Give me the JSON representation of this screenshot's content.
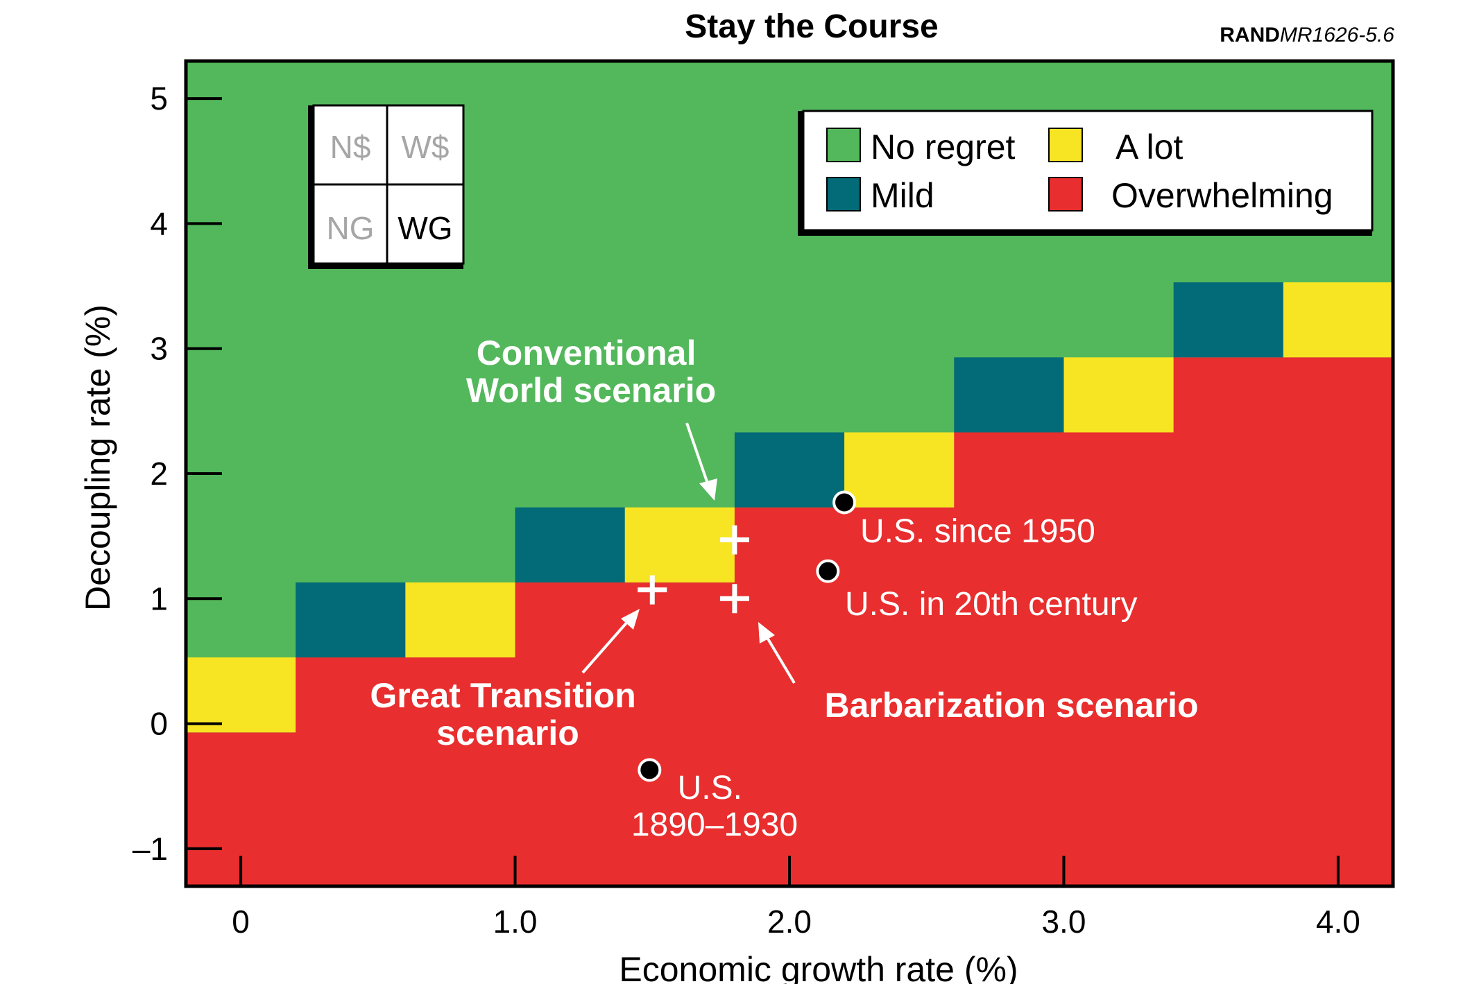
{
  "chart_data": {
    "type": "heatmap",
    "title": "Stay the Course",
    "credit": {
      "org": "RAND",
      "code": "MR1626-5.6"
    },
    "xlabel": "Economic growth rate (%)",
    "ylabel": "Decoupling rate (%)",
    "xlim": [
      -0.2,
      4.2
    ],
    "ylim": [
      -1.3,
      5.3
    ],
    "xticks": [
      {
        "value": 0,
        "label": "0"
      },
      {
        "value": 1.0,
        "label": "1.0"
      },
      {
        "value": 2.0,
        "label": "2.0"
      },
      {
        "value": 3.0,
        "label": "3.0"
      },
      {
        "value": 4.0,
        "label": "4.0"
      }
    ],
    "yticks": [
      {
        "value": -1,
        "label": "–1"
      },
      {
        "value": 0,
        "label": "0"
      },
      {
        "value": 1,
        "label": "1"
      },
      {
        "value": 2,
        "label": "2"
      },
      {
        "value": 3,
        "label": "3"
      },
      {
        "value": 4,
        "label": "4"
      },
      {
        "value": 5,
        "label": "5"
      }
    ],
    "regret_colors": {
      "no_regret": "#53b85b",
      "mild": "#036a78",
      "a_lot": "#f7e523",
      "overwhelming": "#e82e2e"
    },
    "legend": {
      "placement": "top-right",
      "items": [
        {
          "key": "no_regret",
          "label": "No regret"
        },
        {
          "key": "a_lot",
          "label": "A lot"
        },
        {
          "key": "mild",
          "label": "Mild"
        },
        {
          "key": "overwhelming",
          "label": "Overwhelming"
        }
      ]
    },
    "regret_columns": [
      {
        "x0": -0.2,
        "x1": 0.2,
        "mild_bottom": null,
        "ylot_bottom": -0.07,
        "red_top": -0.07,
        "green_bottom": 0.53
      },
      {
        "x0": 0.2,
        "x1": 0.6,
        "mild_bottom": 0.53,
        "ylot_bottom": null,
        "red_top": 0.53,
        "green_bottom": 1.13
      },
      {
        "x0": 0.6,
        "x1": 1.0,
        "mild_bottom": null,
        "ylot_bottom": 0.53,
        "red_top": 0.53,
        "green_bottom": 1.13
      },
      {
        "x0": 1.0,
        "x1": 1.4,
        "mild_bottom": 1.13,
        "ylot_bottom": null,
        "red_top": 1.13,
        "green_bottom": 1.73
      },
      {
        "x0": 1.4,
        "x1": 1.8,
        "mild_bottom": null,
        "ylot_bottom": 1.13,
        "red_top": 1.13,
        "green_bottom": 1.73
      },
      {
        "x0": 1.8,
        "x1": 2.2,
        "mild_bottom": 1.73,
        "ylot_bottom": null,
        "red_top": 1.73,
        "green_bottom": 2.33
      },
      {
        "x0": 2.2,
        "x1": 2.6,
        "mild_bottom": null,
        "ylot_bottom": 1.73,
        "red_top": 1.73,
        "green_bottom": 2.33
      },
      {
        "x0": 2.6,
        "x1": 3.0,
        "mild_bottom": 2.33,
        "ylot_bottom": null,
        "red_top": 2.33,
        "green_bottom": 2.93
      },
      {
        "x0": 3.0,
        "x1": 3.4,
        "mild_bottom": null,
        "ylot_bottom": 2.33,
        "red_top": 2.33,
        "green_bottom": 2.93
      },
      {
        "x0": 3.4,
        "x1": 3.8,
        "mild_bottom": 2.93,
        "ylot_bottom": null,
        "red_top": 2.93,
        "green_bottom": 3.53
      },
      {
        "x0": 3.8,
        "x1": 4.2,
        "mild_bottom": null,
        "ylot_bottom": 2.93,
        "red_top": 2.93,
        "green_bottom": 3.53
      }
    ],
    "historical_points": [
      {
        "label": "U.S. since 1950",
        "x": 2.2,
        "y": 1.77
      },
      {
        "label": "U.S. in 20th century",
        "x": 2.14,
        "y": 1.22
      },
      {
        "label_lines": [
          "U.S.",
          "1890–1930"
        ],
        "x": 1.49,
        "y": -0.37
      }
    ],
    "scenario_points": [
      {
        "name": "Conventional World scenario",
        "label_lines": [
          "Conventional",
          "World scenario"
        ],
        "x": 1.8,
        "y": 1.47
      },
      {
        "name": "Great Transition scenario",
        "label_lines": [
          "Great Transition",
          "scenario"
        ],
        "x": 1.5,
        "y": 1.07
      },
      {
        "name": "Barbarization scenario",
        "label_lines": [
          "Barbarization scenario"
        ],
        "x": 1.8,
        "y": 1.0
      }
    ],
    "grid": false
  },
  "inset": {
    "cells": [
      {
        "label": "N$",
        "color": "#a6a6a6"
      },
      {
        "label": "W$",
        "color": "#a6a6a6"
      },
      {
        "label": "NG",
        "color": "#a6a6a6"
      },
      {
        "label": "WG",
        "color": "#000000"
      }
    ]
  }
}
